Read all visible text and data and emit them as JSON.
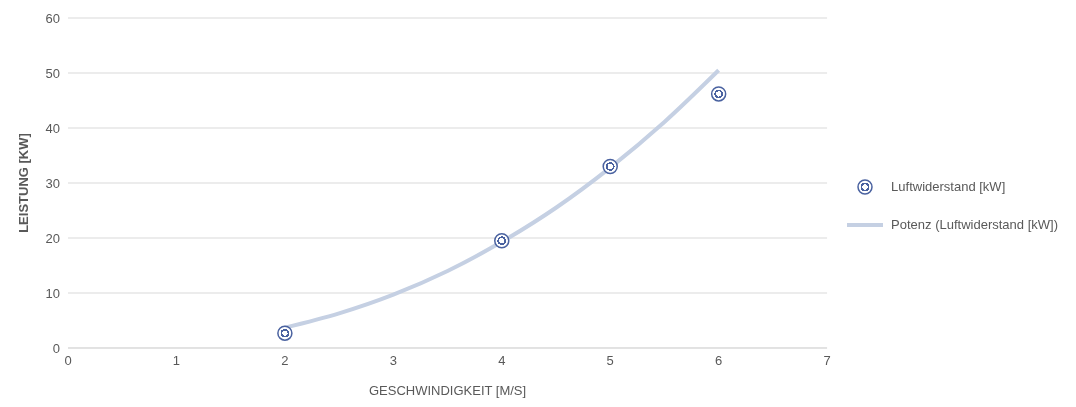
{
  "chart_data": {
    "type": "scatter",
    "xlabel": "GESCHWINDIGKEIT [M/S]",
    "ylabel": "LEISTUNG [KW]",
    "xlim": [
      0,
      7
    ],
    "xticks": [
      0,
      1,
      2,
      3,
      4,
      5,
      6,
      7
    ],
    "ylim": [
      0,
      60
    ],
    "yticks": [
      0,
      10,
      20,
      30,
      40,
      50,
      60
    ],
    "grid": "y",
    "legend": "right",
    "series": [
      {
        "name": "Luftwiderstand [kW]",
        "color": "#4a62a0",
        "marker": "circle",
        "x": [
          2,
          4,
          5,
          6
        ],
        "values": [
          2.7,
          19.5,
          33,
          46.2
        ]
      },
      {
        "name": "Potenz (Luftwiderstand [kW])",
        "type": "line",
        "color": "#c5d0e3",
        "marker": "none",
        "x": [
          2,
          2.5,
          3,
          3.5,
          4,
          4.5,
          5,
          5.5,
          6
        ],
        "values": [
          3.7,
          6.3,
          9.7,
          14,
          19.3,
          25.5,
          32.8,
          41.1,
          50.5
        ]
      }
    ]
  }
}
